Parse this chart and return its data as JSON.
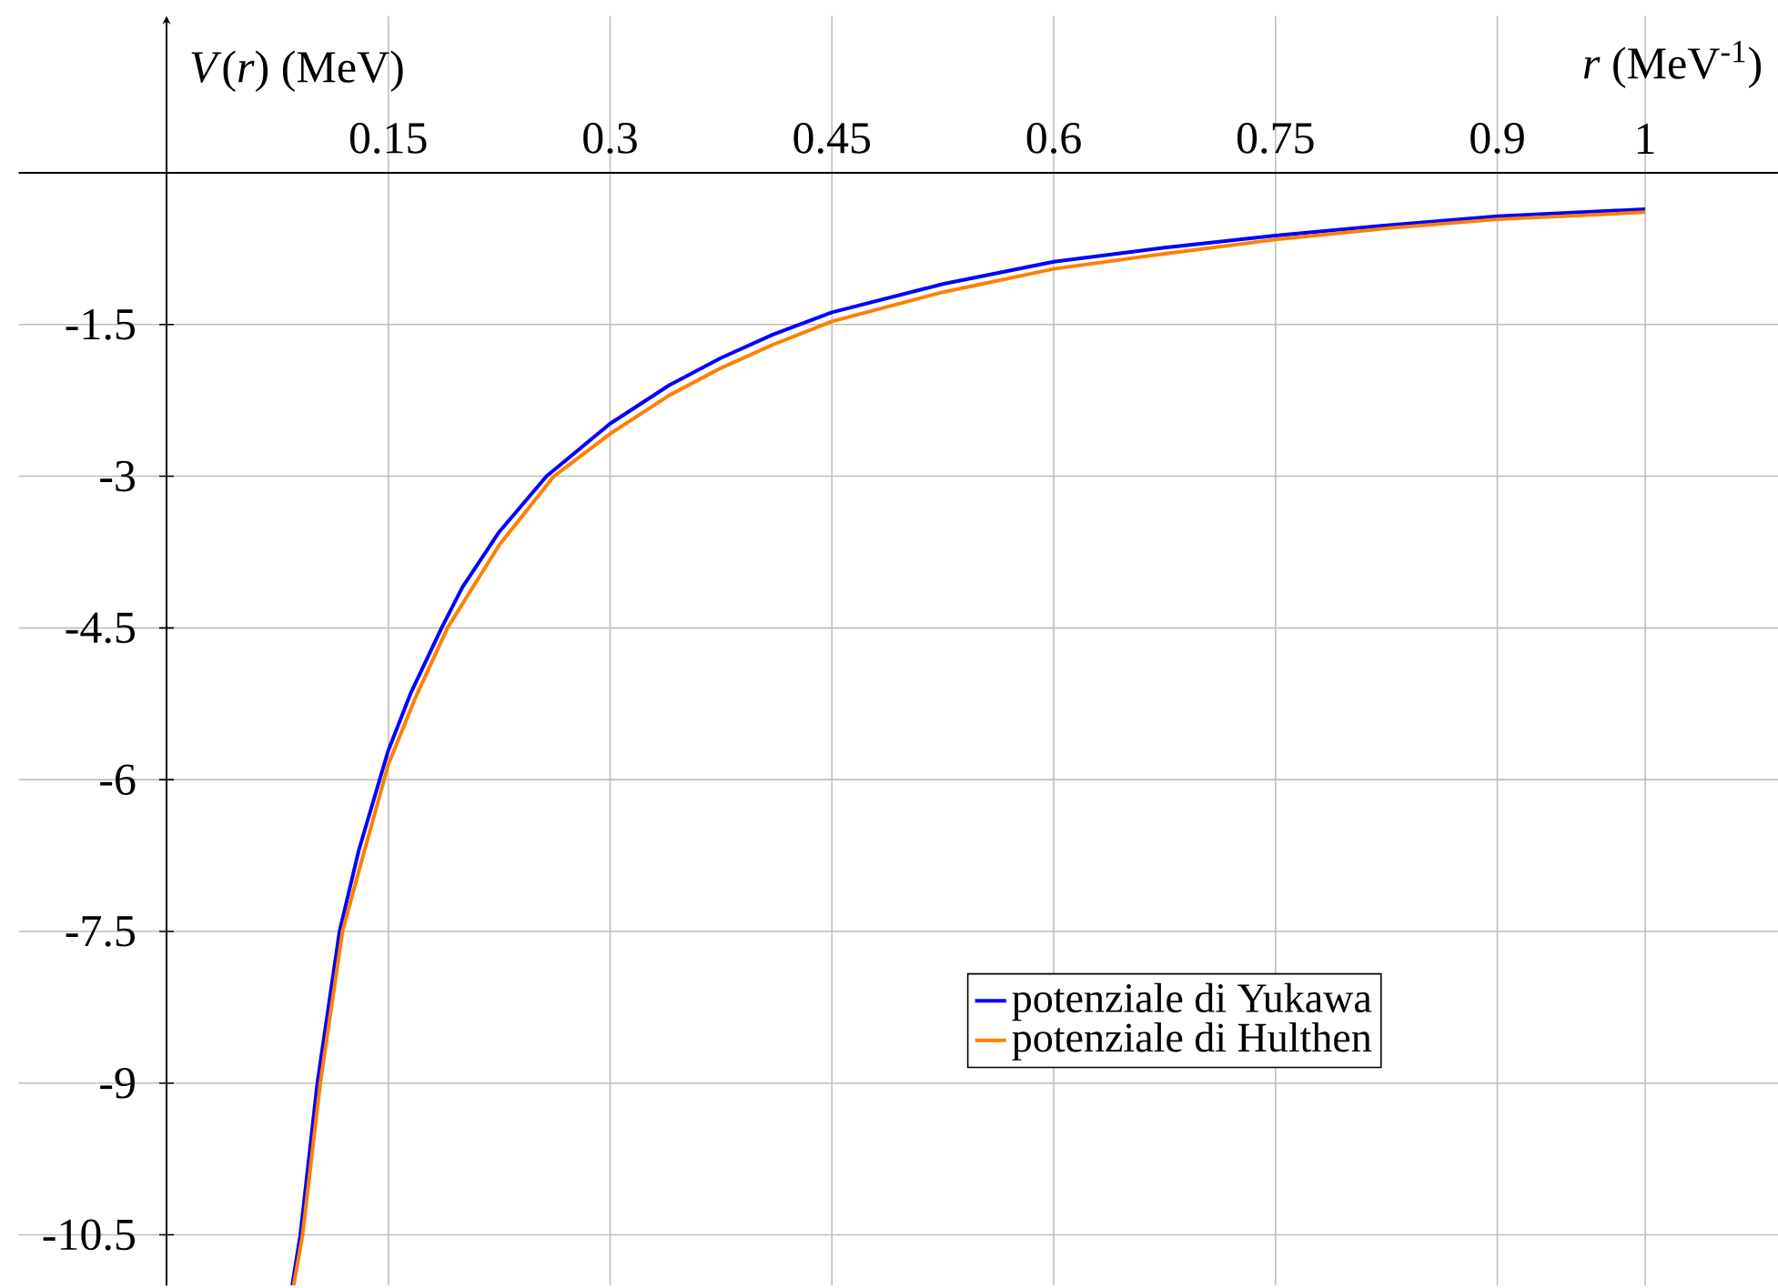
{
  "chart_data": {
    "type": "line",
    "xlabel": "*r* (MeV$^{-1}$)",
    "ylabel": "*V*(*r*) (MeV)",
    "xlim": [
      -0.1,
      1.09
    ],
    "ylim": [
      -11,
      1.55
    ],
    "xticks": [
      0.15,
      0.3,
      0.45,
      0.6,
      0.75,
      0.9,
      1
    ],
    "yticks": [
      -10.5,
      -9,
      -7.5,
      -6,
      -4.5,
      -3,
      -1.5
    ],
    "grid": true,
    "legend": "bottom right",
    "marker": "none",
    "line_style": "solid",
    "series": [
      {
        "name": "potenziale di Yukawa",
        "color": "#0000ff",
        "x": [
          0.085,
          0.0905,
          0.102,
          0.117,
          0.13,
          0.15,
          0.165,
          0.186,
          0.2,
          0.225,
          0.257,
          0.3,
          0.34,
          0.375,
          0.41,
          0.45,
          0.525,
          0.6,
          0.675,
          0.75,
          0.825,
          0.9,
          1
        ],
        "values": [
          -11.0,
          -10.5,
          -9,
          -7.5,
          -6.7,
          -5.71,
          -5.15,
          -4.5,
          -4.1,
          -3.55,
          -3,
          -2.48,
          -2.1,
          -1.83,
          -1.6,
          -1.38,
          -1.1,
          -0.88,
          -0.74,
          -0.62,
          -0.52,
          -0.43,
          -0.36
        ]
      },
      {
        "name": "potenziale di Hulthen",
        "color": "#ff7f00",
        "x": [
          0.086,
          0.092,
          0.104,
          0.119,
          0.132,
          0.15,
          0.168,
          0.19,
          0.225,
          0.262,
          0.3,
          0.34,
          0.375,
          0.41,
          0.45,
          0.525,
          0.6,
          0.675,
          0.75,
          0.825,
          0.9,
          1
        ],
        "values": [
          -11.0,
          -10.5,
          -9,
          -7.5,
          -6.8,
          -5.85,
          -5.2,
          -4.5,
          -3.68,
          -3,
          -2.58,
          -2.2,
          -1.93,
          -1.7,
          -1.47,
          -1.18,
          -0.95,
          -0.8,
          -0.66,
          -0.55,
          -0.46,
          -0.39
        ]
      }
    ]
  }
}
